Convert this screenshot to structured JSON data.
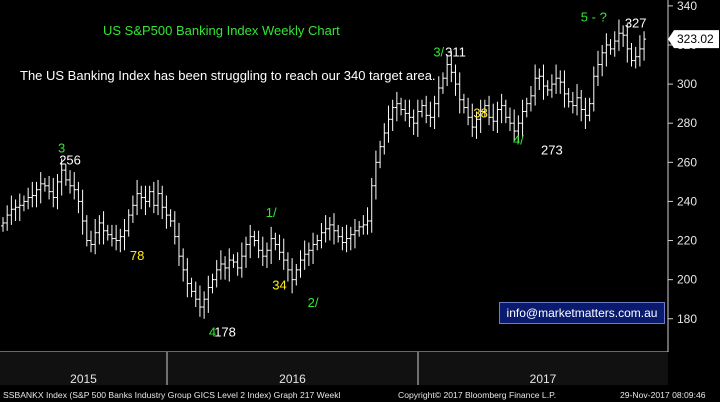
{
  "chart_data": {
    "type": "ohlc",
    "title": "US S&P500 Banking Index Weekly Chart",
    "note": "The US Banking Index has been struggling to reach our 340 target area.",
    "ylim": [
      163,
      343
    ],
    "yticks": [
      180,
      200,
      220,
      240,
      260,
      280,
      300,
      320,
      340
    ],
    "x_year_labels": [
      "2015",
      "2016",
      "2017"
    ],
    "last_price": "323.02",
    "grid": false,
    "colors": {
      "background": "#000000",
      "bars": "#ffffff",
      "title": "#33e633",
      "wave_count": "#33e633",
      "fib": "#ffeb1a",
      "price_label": "#ffffff",
      "last_price_tag": "#ffffff"
    },
    "closes": [
      229,
      233,
      236,
      237,
      238,
      240,
      242,
      243,
      246,
      249,
      248,
      245,
      242,
      250,
      256,
      251,
      248,
      246,
      240,
      230,
      220,
      218,
      224,
      229,
      225,
      223,
      221,
      220,
      222,
      225,
      233,
      238,
      244,
      242,
      240,
      245,
      238,
      244,
      237,
      233,
      230,
      222,
      212,
      205,
      198,
      194,
      190,
      186,
      190,
      196,
      200,
      205,
      208,
      206,
      210,
      209,
      206,
      212,
      218,
      222,
      220,
      215,
      212,
      215,
      221,
      218,
      214,
      210,
      205,
      200,
      205,
      210,
      213,
      215,
      218,
      220,
      224,
      226,
      228,
      225,
      222,
      219,
      221,
      223,
      225,
      227,
      228,
      230,
      248,
      260,
      268,
      275,
      282,
      288,
      290,
      287,
      285,
      283,
      280,
      286,
      289,
      284,
      283,
      290,
      298,
      303,
      310,
      306,
      300,
      292,
      288,
      283,
      278,
      282,
      286,
      289,
      283,
      281,
      287,
      289,
      283,
      280,
      276,
      280,
      286,
      290,
      294,
      303,
      304,
      299,
      297,
      300,
      303,
      301,
      295,
      291,
      289,
      293,
      287,
      284,
      290,
      304,
      310,
      316,
      320,
      318,
      322,
      326,
      325,
      318,
      312,
      314,
      318,
      323
    ],
    "wave_labels": [
      {
        "text": "3",
        "kind": "wave",
        "bar": 14,
        "price": 265
      },
      {
        "text": "4",
        "kind": "wave",
        "bar": 50,
        "price": 171
      },
      {
        "text": "1/",
        "kind": "wave",
        "bar": 64,
        "price": 232
      },
      {
        "text": "2/",
        "kind": "wave",
        "bar": 74,
        "price": 186
      },
      {
        "text": "3/",
        "kind": "wave",
        "bar": 104,
        "price": 314
      },
      {
        "text": "4/",
        "kind": "wave",
        "bar": 123,
        "price": 269
      },
      {
        "text": "5 - ?",
        "kind": "wave",
        "bar": 141,
        "price": 332
      }
    ],
    "fib_labels": [
      {
        "text": "78",
        "bar": 32,
        "price": 210
      },
      {
        "text": "34",
        "bar": 66,
        "price": 195
      },
      {
        "text": "38",
        "bar": 114,
        "price": 283
      }
    ],
    "price_labels": [
      {
        "text": "256",
        "bar": 16,
        "price": 259
      },
      {
        "text": "178",
        "bar": 53,
        "price": 171
      },
      {
        "text": "311",
        "bar": 108,
        "price": 314
      },
      {
        "text": "273",
        "bar": 131,
        "price": 264
      },
      {
        "text": "327",
        "bar": 151,
        "price": 329
      }
    ]
  },
  "contact": "info@marketmatters.com.au",
  "footer": {
    "left": "SSBANKX Index (S&P 500 Banks Industry Group GICS Level 2 Index) Graph 217  Weekl",
    "copyright": "Copyright© 2017 Bloomberg Finance L.P.",
    "date": "29-Nov-2017 08:09:46"
  }
}
